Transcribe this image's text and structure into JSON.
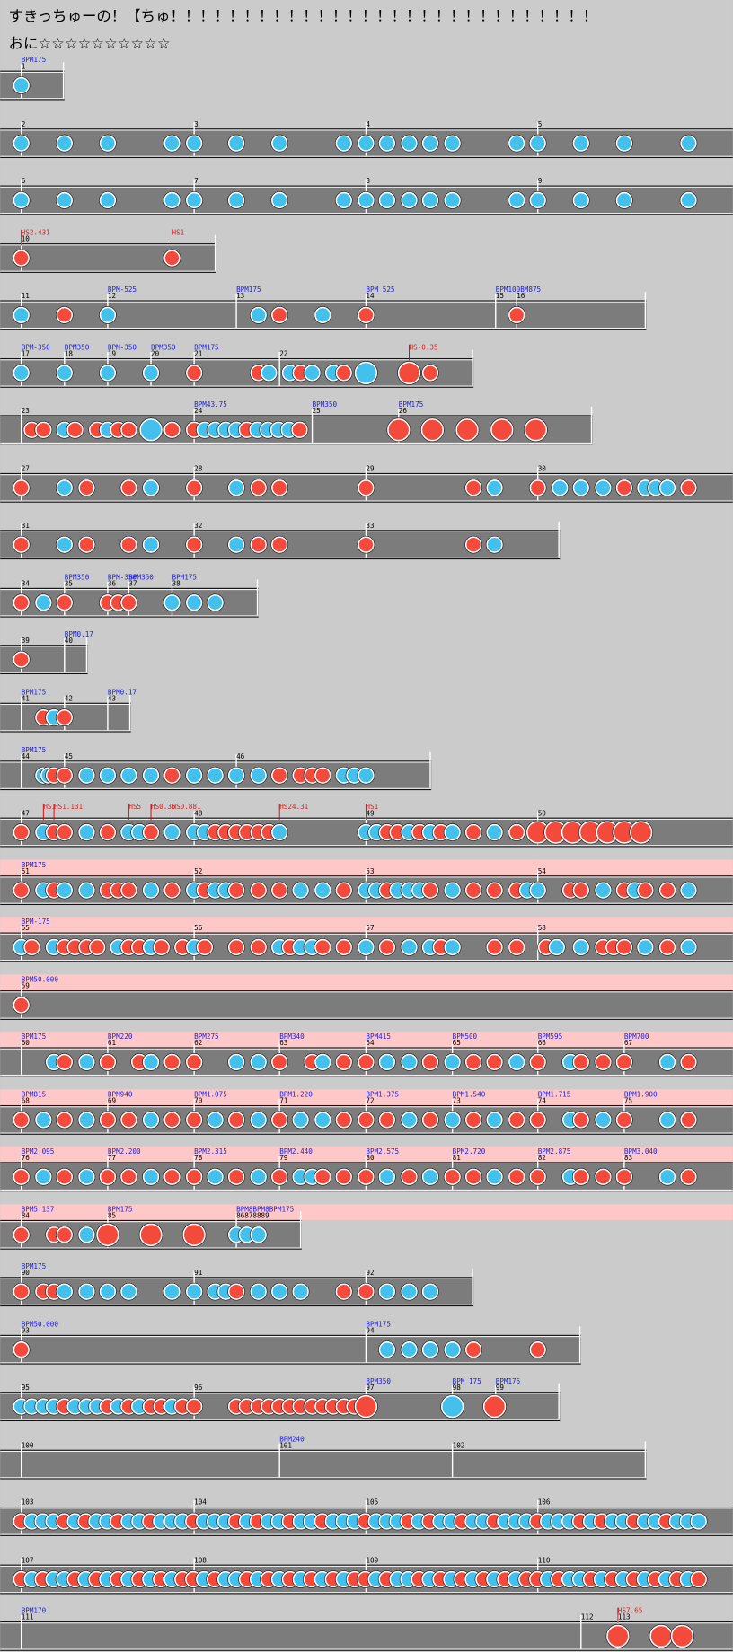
{
  "header": {
    "title": "すきっちゅーの！【ちゅ！！！！！！！！！！！！！！！！！！！！！！！！！！！！！",
    "difficulty": "おに",
    "stars": "☆☆☆☆☆☆☆☆☆☆"
  },
  "rows": [
    {
      "measures": [
        "1"
      ],
      "bpm": [
        "BPM175"
      ]
    },
    {
      "measures": [
        "2",
        "3",
        "4",
        "5"
      ]
    },
    {
      "measures": [
        "6",
        "7",
        "8",
        "9"
      ]
    },
    {
      "measures": [
        "10"
      ],
      "hs": [
        "HS2.431",
        "HS1"
      ]
    },
    {
      "measures": [
        "11",
        "12",
        "13",
        "14",
        "15",
        "16"
      ],
      "bpm": [
        "BPM-525",
        "BPM175",
        "BPM 525",
        "BPM100BM875"
      ]
    },
    {
      "measures": [
        "17",
        "18",
        "19",
        "20",
        "21",
        "22"
      ],
      "bpm": [
        "BPM-350",
        "BPM350",
        "BPM-350",
        "BPM350",
        "BPM175"
      ],
      "hs": [
        "HS-0.35"
      ]
    },
    {
      "measures": [
        "23",
        "24",
        "25",
        "26"
      ],
      "bpm": [
        "BPM43.75",
        "BPM350",
        "BPM175"
      ]
    },
    {
      "measures": [
        "27",
        "28",
        "29",
        "30"
      ]
    },
    {
      "measures": [
        "31",
        "32",
        "33"
      ]
    },
    {
      "measures": [
        "34",
        "35",
        "36",
        "37",
        "38"
      ],
      "bpm": [
        "BPM350",
        "BPM-350",
        "BPM350",
        "BPM175"
      ]
    },
    {
      "measures": [
        "39",
        "40"
      ],
      "bpm": [
        "BPM0.17"
      ]
    },
    {
      "measures": [
        "41",
        "42",
        "43"
      ],
      "bpm": [
        "BPM175",
        "BPM0.17"
      ]
    },
    {
      "measures": [
        "44",
        "45",
        "46"
      ],
      "bpm": [
        "BPM175"
      ]
    },
    {
      "measures": [
        "47",
        "48",
        "49",
        "50"
      ],
      "hs": [
        "HS1",
        "HS1.131",
        "HS5",
        "HS0.35",
        "HS0.881",
        "HS24.31",
        "HS1"
      ]
    },
    {
      "measures": [
        "51",
        "52",
        "53",
        "54"
      ],
      "bpm": [
        "BPM175"
      ]
    },
    {
      "measures": [
        "55",
        "56",
        "57",
        "58"
      ],
      "bpm": [
        "BPM-175"
      ]
    },
    {
      "measures": [
        "59"
      ],
      "bpm": [
        "BPM50.000"
      ]
    },
    {
      "measures": [
        "60",
        "61",
        "62",
        "63",
        "64",
        "65",
        "66",
        "67"
      ],
      "bpm": [
        "BPM175",
        "BPM220",
        "BPM275",
        "BPM340",
        "BPM415",
        "BPM500",
        "BPM595",
        "BPM700"
      ]
    },
    {
      "measures": [
        "68",
        "69",
        "70",
        "71",
        "72",
        "73",
        "74",
        "75"
      ],
      "bpm": [
        "BPM815",
        "BPM940",
        "BPM1.075",
        "BPM1.220",
        "BPM1.375",
        "BPM1.540",
        "BPM1.715",
        "BPM1.900"
      ]
    },
    {
      "measures": [
        "76",
        "77",
        "78",
        "79",
        "80",
        "81",
        "82",
        "83"
      ],
      "bpm": [
        "BPM2.095",
        "BPM2.200",
        "BPM2.315",
        "BPM2.440",
        "BPM2.575",
        "BPM2.720",
        "BPM2.875",
        "BPM3.040"
      ]
    },
    {
      "measures": [
        "84",
        "85",
        "86878889"
      ],
      "bpm": [
        "BPM5.137",
        "BPM175",
        "BPM8BPM8BPM175"
      ]
    },
    {
      "measures": [
        "90",
        "91",
        "92"
      ],
      "bpm": [
        "BPM175"
      ]
    },
    {
      "measures": [
        "93",
        "94"
      ],
      "bpm": [
        "BPM50.000",
        "BPM175"
      ]
    },
    {
      "measures": [
        "95",
        "96",
        "97",
        "98",
        "99"
      ],
      "bpm": [
        "BPM350",
        "BPM 175",
        "BPM175"
      ]
    },
    {
      "measures": [
        "100",
        "101",
        "102"
      ],
      "bpm": [
        "BPM240"
      ]
    },
    {
      "measures": [
        "103",
        "104",
        "105",
        "106"
      ]
    },
    {
      "measures": [
        "107",
        "108",
        "109",
        "110"
      ]
    },
    {
      "measures": [
        "111",
        "112",
        "113"
      ],
      "bpm": [
        "BPM170"
      ],
      "hs": [
        "HS7.65"
      ]
    }
  ]
}
